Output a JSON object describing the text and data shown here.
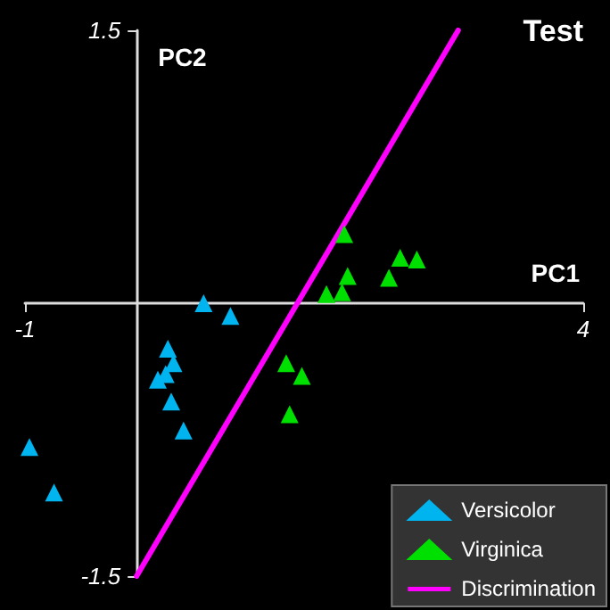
{
  "chart_data": {
    "type": "scatter",
    "title": "Test",
    "xlabel": "PC1",
    "ylabel": "PC2",
    "xlim": [
      -1,
      4
    ],
    "ylim": [
      -1.5,
      1.5
    ],
    "xticks": [
      -1,
      4
    ],
    "yticks": [
      -1.5,
      1.5
    ],
    "grid": false,
    "legend": "bottom right",
    "marker": "triangle",
    "series": [
      {
        "name": "Versicolor",
        "color": "#00b4f0",
        "x": [
          0.6,
          0.84,
          0.28,
          0.33,
          0.26,
          0.19,
          0.31,
          0.42,
          -0.96,
          -0.74
        ],
        "values": [
          0,
          -0.07,
          -0.25,
          -0.33,
          -0.39,
          -0.42,
          -0.54,
          -0.7,
          -0.79,
          -1.04
        ]
      },
      {
        "name": "Virginica",
        "color": "#00e000",
        "x": [
          1.86,
          2.36,
          2.51,
          1.89,
          2.26,
          1.7,
          1.84,
          1.34,
          1.48,
          1.37
        ],
        "values": [
          0.38,
          0.25,
          0.24,
          0.15,
          0.14,
          0.05,
          0.06,
          -0.33,
          -0.4,
          -0.61
        ]
      },
      {
        "name": "Discrimination",
        "type": "line",
        "color": "#ff00ff",
        "marker": "none",
        "line_style": "solid",
        "x": [
          0,
          2.88
        ],
        "values": [
          -1.5,
          1.5
        ]
      }
    ]
  }
}
